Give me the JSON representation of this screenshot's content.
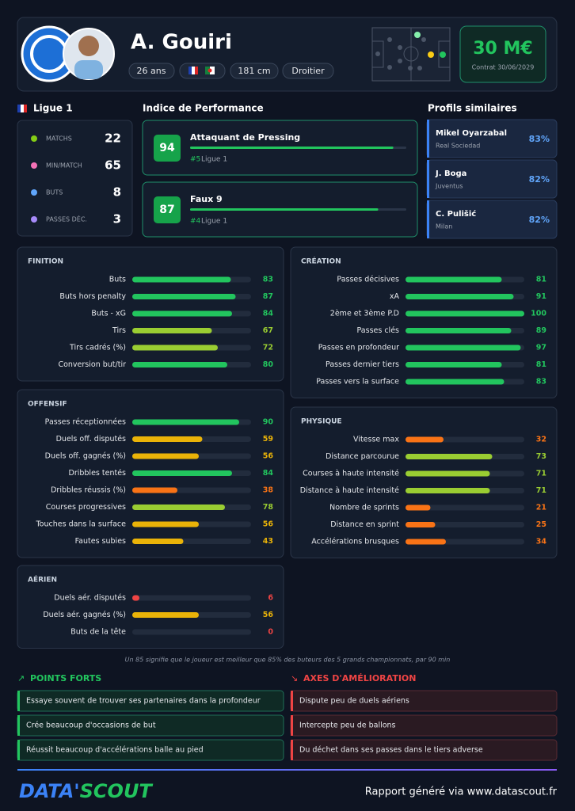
{
  "header": {
    "name": "A. Gouiri",
    "age": "26 ans",
    "height": "181 cm",
    "foot": "Droitier",
    "market_value": "30 M€",
    "contract": "Contrat 30/06/2029"
  },
  "league": {
    "name": "Ligue 1",
    "stats": [
      {
        "label": "MATCHS",
        "value": 22
      },
      {
        "label": "MIN/MATCH",
        "value": 65
      },
      {
        "label": "BUTS",
        "value": 8
      },
      {
        "label": "PASSES DÉC.",
        "value": 3
      }
    ]
  },
  "performance": {
    "title": "Indice de Performance",
    "items": [
      {
        "score": 94,
        "role": "Attaquant de Pressing",
        "rank": "#5",
        "league": "Ligue 1"
      },
      {
        "score": 87,
        "role": "Faux 9",
        "rank": "#4",
        "league": "Ligue 1"
      }
    ]
  },
  "similar": {
    "title": "Profils similaires",
    "items": [
      {
        "name": "Mikel Oyarzabal",
        "club": "Real Sociedad",
        "match": "83%"
      },
      {
        "name": "J. Boga",
        "club": "Juventus",
        "match": "82%"
      },
      {
        "name": "C. Pulišić",
        "club": "Milan",
        "match": "82%"
      }
    ]
  },
  "sections": [
    {
      "title": "FINITION",
      "metrics": [
        {
          "label": "Buts",
          "value": 83
        },
        {
          "label": "Buts hors penalty",
          "value": 87
        },
        {
          "label": "Buts - xG",
          "value": 84
        },
        {
          "label": "Tirs",
          "value": 67
        },
        {
          "label": "Tirs cadrés (%)",
          "value": 72
        },
        {
          "label": "Conversion but/tir",
          "value": 80
        }
      ]
    },
    {
      "title": "CRÉATION",
      "metrics": [
        {
          "label": "Passes décisives",
          "value": 81
        },
        {
          "label": "xA",
          "value": 91
        },
        {
          "label": "2ème et 3ème P.D",
          "value": 100
        },
        {
          "label": "Passes clés",
          "value": 89
        },
        {
          "label": "Passes en profondeur",
          "value": 97
        },
        {
          "label": "Passes dernier tiers",
          "value": 81
        },
        {
          "label": "Passes vers la surface",
          "value": 83
        }
      ]
    },
    {
      "title": "OFFENSIF",
      "metrics": [
        {
          "label": "Passes réceptionnées",
          "value": 90
        },
        {
          "label": "Duels off. disputés",
          "value": 59
        },
        {
          "label": "Duels off. gagnés (%)",
          "value": 56
        },
        {
          "label": "Dribbles tentés",
          "value": 84
        },
        {
          "label": "Dribbles réussis (%)",
          "value": 38
        },
        {
          "label": "Courses progressives",
          "value": 78
        },
        {
          "label": "Touches dans la surface",
          "value": 56
        },
        {
          "label": "Fautes subies",
          "value": 43
        }
      ]
    },
    {
      "title": "PHYSIQUE",
      "metrics": [
        {
          "label": "Vitesse max",
          "value": 32
        },
        {
          "label": "Distance parcourue",
          "value": 73
        },
        {
          "label": "Courses à haute intensité",
          "value": 71
        },
        {
          "label": "Distance à haute intensité",
          "value": 71
        },
        {
          "label": "Nombre de sprints",
          "value": 21
        },
        {
          "label": "Distance en sprint",
          "value": 25
        },
        {
          "label": "Accélérations brusques",
          "value": 34
        }
      ]
    },
    {
      "title": "AÉRIEN",
      "metrics": [
        {
          "label": "Duels aér. disputés",
          "value": 6
        },
        {
          "label": "Duels aér. gagnés (%)",
          "value": 56
        },
        {
          "label": "Buts de la tête",
          "value": 0
        }
      ]
    }
  ],
  "note": "Un 85 signifie que le joueur est meilleur que 85% des buteurs des 5 grands championnats, par 90 min",
  "strengths": {
    "title": "POINTS FORTS",
    "items": [
      "Essaye souvent de trouver ses partenaires dans la profondeur",
      "Crée beaucoup d'occasions de but",
      "Réussit beaucoup d'accélérations balle au pied"
    ]
  },
  "improvements": {
    "title": "AXES D'AMÉLIORATION",
    "items": [
      "Dispute peu de duels aériens",
      "Intercepte peu de ballons",
      "Du déchet dans ses passes dans le tiers adverse"
    ]
  },
  "footer": {
    "logo_left": "DATA'",
    "logo_right": "SCOUT",
    "credit": "Rapport généré via www.datascout.fr"
  }
}
